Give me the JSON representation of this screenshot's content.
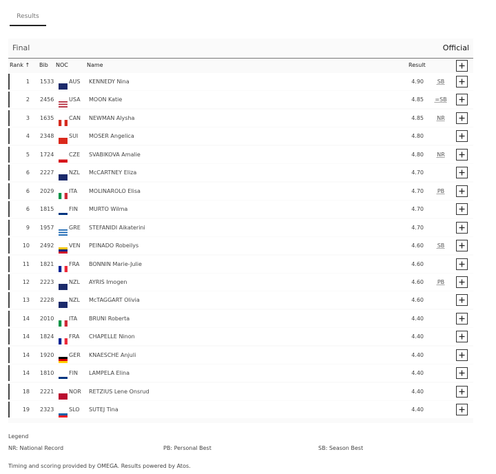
{
  "tabs": [
    "Results"
  ],
  "section": {
    "title": "Final",
    "status": "Official"
  },
  "table": {
    "headers": {
      "rank": "Rank ↑",
      "bib": "Bib",
      "noc": "NOC",
      "name": "Name",
      "result": "Result"
    },
    "rows": [
      {
        "rank": 1,
        "bib": 1533,
        "noc": "AUS",
        "name": "KENNEDY Nina",
        "result": "4.90",
        "record": "SB"
      },
      {
        "rank": 2,
        "bib": 2456,
        "noc": "USA",
        "name": "MOON Katie",
        "result": "4.85",
        "record": "=SB"
      },
      {
        "rank": 3,
        "bib": 1635,
        "noc": "CAN",
        "name": "NEWMAN Alysha",
        "result": "4.85",
        "record": "NR"
      },
      {
        "rank": 4,
        "bib": 2348,
        "noc": "SUI",
        "name": "MOSER Angelica",
        "result": "4.80"
      },
      {
        "rank": 5,
        "bib": 1724,
        "noc": "CZE",
        "name": "SVABIKOVA Amalie",
        "result": "4.80",
        "record": "NR"
      },
      {
        "rank": 6,
        "bib": 2227,
        "noc": "NZL",
        "name": "McCARTNEY Eliza",
        "result": "4.70"
      },
      {
        "rank": 6,
        "bib": 2029,
        "noc": "ITA",
        "name": "MOLINAROLO Elisa",
        "result": "4.70",
        "record": "PB"
      },
      {
        "rank": 6,
        "bib": 1815,
        "noc": "FIN",
        "name": "MURTO Wilma",
        "result": "4.70"
      },
      {
        "rank": 9,
        "bib": 1957,
        "noc": "GRE",
        "name": "STEFANIDI Aikaterini",
        "result": "4.70"
      },
      {
        "rank": 10,
        "bib": 2492,
        "noc": "VEN",
        "name": "PEINADO Robeilys",
        "result": "4.60",
        "record": "SB"
      },
      {
        "rank": 11,
        "bib": 1821,
        "noc": "FRA",
        "name": "BONNIN Marie-Julie",
        "result": "4.60"
      },
      {
        "rank": 12,
        "bib": 2223,
        "noc": "NZL",
        "name": "AYRIS Imogen",
        "result": "4.60",
        "record": "PB"
      },
      {
        "rank": 13,
        "bib": 2228,
        "noc": "NZL",
        "name": "McTAGGART Olivia",
        "result": "4.60"
      },
      {
        "rank": 14,
        "bib": 2010,
        "noc": "ITA",
        "name": "BRUNI Roberta",
        "result": "4.40"
      },
      {
        "rank": 14,
        "bib": 1824,
        "noc": "FRA",
        "name": "CHAPELLE Ninon",
        "result": "4.40"
      },
      {
        "rank": 14,
        "bib": 1920,
        "noc": "GER",
        "name": "KNAESCHE Anjuli",
        "result": "4.40"
      },
      {
        "rank": 14,
        "bib": 1810,
        "noc": "FIN",
        "name": "LAMPELA Elina",
        "result": "4.40"
      },
      {
        "rank": 18,
        "bib": 2221,
        "noc": "NOR",
        "name": "RETZIUS Lene Onsrud",
        "result": "4.40"
      },
      {
        "rank": 19,
        "bib": 2323,
        "noc": "SLO",
        "name": "SUTEJ Tina",
        "result": "4.40"
      }
    ]
  },
  "legend": {
    "title": "Legend",
    "items": [
      {
        "code": "NR:",
        "text": "National Record"
      },
      {
        "code": "PB:",
        "text": "Personal Best"
      },
      {
        "code": "SB:",
        "text": "Season Best"
      }
    ]
  },
  "footer": "Timing and scoring provided by OMEGA. Results powered by Atos."
}
